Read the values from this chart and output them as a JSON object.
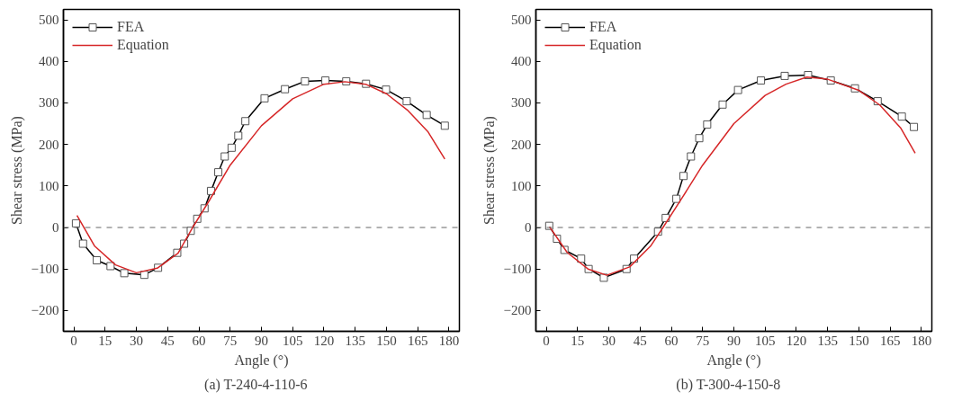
{
  "chart_data": [
    {
      "type": "line",
      "title": "(a)    T-240-4-110-6",
      "xlabel": "Angle (°)",
      "ylabel": "Shear stress (MPa)",
      "xlim": [
        -5,
        185
      ],
      "ylim": [
        -250,
        525
      ],
      "xticks": [
        0,
        15,
        30,
        45,
        60,
        75,
        90,
        105,
        120,
        135,
        150,
        165,
        180
      ],
      "yticks": [
        -200,
        -100,
        0,
        100,
        200,
        300,
        400,
        500
      ],
      "grid": false,
      "legend": "top left",
      "ref_lines": [
        {
          "axis": "y",
          "value": 0,
          "color": "#666666",
          "line_style": "dashed"
        }
      ],
      "series": [
        {
          "name": "FEA",
          "color": "#000000",
          "marker": "square",
          "line_style": "solid",
          "x": [
            1.0,
            4.4,
            11,
            17.6,
            24.2,
            33.8,
            40.4,
            49.6,
            52.9,
            56.1,
            59.2,
            62.7,
            65.8,
            69.3,
            72.4,
            75.7,
            78.9,
            82.3,
            91.5,
            101.3,
            110.9,
            120.7,
            130.7,
            140.2,
            149.8,
            159.7,
            169.3,
            178
          ],
          "values": [
            10,
            -39,
            -79,
            -93,
            -110,
            -114,
            -97,
            -61,
            -39,
            -8,
            21,
            46,
            88,
            133,
            171,
            192,
            221,
            256,
            311,
            333,
            352,
            354,
            352,
            346,
            332,
            304,
            271,
            245
          ]
        },
        {
          "name": "Equation",
          "color": "#d62728",
          "marker": "none",
          "line_style": "solid",
          "x": [
            1.5,
            10,
            20,
            30,
            40,
            50,
            57,
            65,
            75,
            90,
            105,
            120,
            130,
            140,
            150,
            160,
            170,
            178
          ],
          "values": [
            29,
            -45,
            -90,
            -109,
            -98,
            -62,
            0,
            65,
            150,
            245,
            310,
            345,
            351,
            345,
            322,
            283,
            230,
            165
          ]
        }
      ]
    },
    {
      "type": "line",
      "title": "(b)    T-300-4-150-8",
      "xlabel": "Angle (°)",
      "ylabel": "Shear stress (MPa)",
      "xlim": [
        -5,
        185
      ],
      "ylim": [
        -250,
        525
      ],
      "xticks": [
        0,
        15,
        30,
        45,
        60,
        75,
        90,
        105,
        120,
        135,
        150,
        165,
        180
      ],
      "yticks": [
        -200,
        -100,
        0,
        100,
        200,
        300,
        400,
        500
      ],
      "grid": false,
      "legend": "top left",
      "ref_lines": [
        {
          "axis": "y",
          "value": 0,
          "color": "#666666",
          "line_style": "dashed"
        }
      ],
      "series": [
        {
          "name": "FEA",
          "color": "#000000",
          "marker": "square",
          "line_style": "solid",
          "x": [
            1.4,
            5.1,
            8.7,
            16.7,
            20.3,
            27.6,
            38.5,
            42.1,
            53.6,
            57.3,
            62.4,
            65.8,
            69.4,
            73.4,
            77.2,
            84.6,
            92,
            103,
            114.4,
            125.6,
            136.5,
            148.1,
            159,
            170.6,
            176.4
          ],
          "values": [
            4,
            -27,
            -54,
            -75,
            -100,
            -121,
            -100,
            -75,
            -10,
            23,
            69,
            124,
            171,
            215,
            248,
            296,
            331,
            354,
            365,
            367,
            354,
            335,
            304,
            267,
            242
          ]
        },
        {
          "name": "Equation",
          "color": "#d62728",
          "marker": "none",
          "line_style": "solid",
          "x": [
            1.5,
            10,
            20,
            29,
            40,
            50,
            56,
            65,
            75,
            90,
            105,
            115,
            125,
            135,
            150,
            160,
            170,
            177
          ],
          "values": [
            2,
            -60,
            -100,
            -115,
            -95,
            -45,
            0,
            70,
            150,
            250,
            318,
            345,
            362,
            357,
            330,
            295,
            240,
            179
          ]
        }
      ]
    }
  ]
}
